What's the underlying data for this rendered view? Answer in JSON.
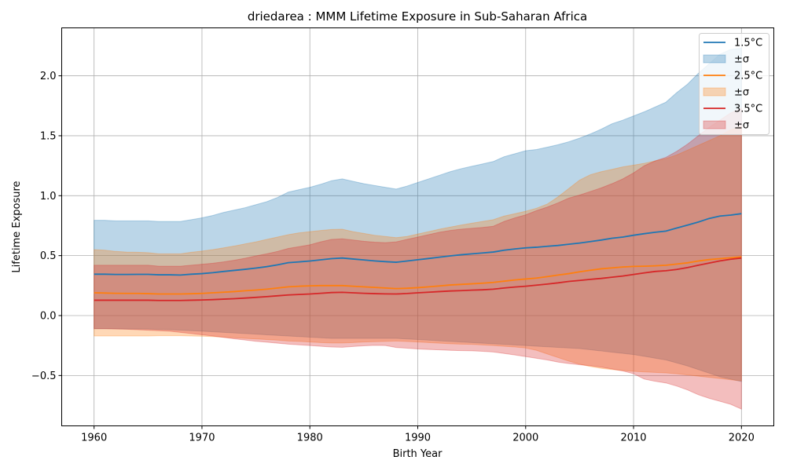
{
  "chart_data": {
    "type": "line",
    "title": "driedarea : MMM Lifetime Exposure in Sub-Saharan Africa",
    "xlabel": "Birth Year",
    "ylabel": "Lifetime Exposure",
    "xlim": [
      1957,
      2023
    ],
    "ylim": [
      -0.92,
      2.4
    ],
    "xticks": [
      1960,
      1970,
      1980,
      1990,
      2000,
      2010,
      2020
    ],
    "yticks": [
      -0.5,
      0.0,
      0.5,
      1.0,
      1.5,
      2.0
    ],
    "ytick_labels": [
      "−0.5",
      "0.0",
      "0.5",
      "1.0",
      "1.5",
      "2.0"
    ],
    "grid": true,
    "legend_position": "top-right",
    "x": [
      1960,
      1961,
      1962,
      1963,
      1964,
      1965,
      1966,
      1967,
      1968,
      1969,
      1970,
      1971,
      1972,
      1973,
      1974,
      1975,
      1976,
      1977,
      1978,
      1979,
      1980,
      1981,
      1982,
      1983,
      1984,
      1985,
      1986,
      1987,
      1988,
      1989,
      1990,
      1991,
      1992,
      1993,
      1994,
      1995,
      1996,
      1997,
      1998,
      1999,
      2000,
      2001,
      2002,
      2003,
      2004,
      2005,
      2006,
      2007,
      2008,
      2009,
      2010,
      2011,
      2012,
      2013,
      2014,
      2015,
      2016,
      2017,
      2018,
      2019,
      2020
    ],
    "series": [
      {
        "name": "1.5°C",
        "band_label": "±σ",
        "color": "#1f77b4",
        "band_color": "#aecde6",
        "mean": [
          0.345,
          0.345,
          0.343,
          0.343,
          0.344,
          0.344,
          0.34,
          0.34,
          0.338,
          0.345,
          0.35,
          0.358,
          0.368,
          0.377,
          0.386,
          0.396,
          0.408,
          0.423,
          0.441,
          0.448,
          0.455,
          0.465,
          0.475,
          0.48,
          0.472,
          0.464,
          0.456,
          0.45,
          0.445,
          0.455,
          0.466,
          0.476,
          0.487,
          0.498,
          0.507,
          0.515,
          0.522,
          0.53,
          0.545,
          0.556,
          0.565,
          0.57,
          0.578,
          0.585,
          0.595,
          0.605,
          0.617,
          0.63,
          0.645,
          0.655,
          0.67,
          0.683,
          0.695,
          0.705,
          0.73,
          0.755,
          0.78,
          0.81,
          0.83,
          0.838,
          0.85
        ],
        "upper": [
          0.795,
          0.795,
          0.79,
          0.79,
          0.79,
          0.79,
          0.785,
          0.785,
          0.785,
          0.8,
          0.815,
          0.835,
          0.86,
          0.88,
          0.9,
          0.925,
          0.95,
          0.985,
          1.03,
          1.05,
          1.07,
          1.095,
          1.125,
          1.14,
          1.12,
          1.1,
          1.085,
          1.07,
          1.055,
          1.08,
          1.11,
          1.14,
          1.17,
          1.2,
          1.225,
          1.245,
          1.265,
          1.285,
          1.325,
          1.35,
          1.375,
          1.385,
          1.405,
          1.425,
          1.45,
          1.48,
          1.515,
          1.555,
          1.6,
          1.63,
          1.665,
          1.7,
          1.74,
          1.78,
          1.86,
          1.93,
          2.02,
          2.1,
          2.18,
          2.22,
          2.23
        ],
        "lower": [
          -0.11,
          -0.11,
          -0.11,
          -0.112,
          -0.112,
          -0.112,
          -0.115,
          -0.118,
          -0.122,
          -0.126,
          -0.13,
          -0.135,
          -0.14,
          -0.145,
          -0.15,
          -0.155,
          -0.16,
          -0.165,
          -0.17,
          -0.175,
          -0.18,
          -0.185,
          -0.19,
          -0.19,
          -0.19,
          -0.19,
          -0.19,
          -0.19,
          -0.19,
          -0.195,
          -0.2,
          -0.205,
          -0.21,
          -0.215,
          -0.22,
          -0.225,
          -0.23,
          -0.235,
          -0.24,
          -0.245,
          -0.25,
          -0.255,
          -0.26,
          -0.265,
          -0.27,
          -0.275,
          -0.285,
          -0.295,
          -0.305,
          -0.315,
          -0.325,
          -0.34,
          -0.355,
          -0.37,
          -0.395,
          -0.42,
          -0.45,
          -0.48,
          -0.51,
          -0.53,
          -0.55
        ]
      },
      {
        "name": "2.5°C",
        "band_label": "±σ",
        "color": "#ff7f0e",
        "band_color": "#f8c9a2",
        "mean": [
          0.19,
          0.188,
          0.186,
          0.185,
          0.185,
          0.183,
          0.18,
          0.18,
          0.18,
          0.182,
          0.185,
          0.19,
          0.195,
          0.2,
          0.207,
          0.213,
          0.22,
          0.23,
          0.24,
          0.245,
          0.248,
          0.25,
          0.25,
          0.25,
          0.245,
          0.24,
          0.235,
          0.23,
          0.225,
          0.228,
          0.233,
          0.24,
          0.247,
          0.255,
          0.26,
          0.265,
          0.27,
          0.277,
          0.287,
          0.297,
          0.305,
          0.313,
          0.325,
          0.338,
          0.35,
          0.365,
          0.378,
          0.39,
          0.398,
          0.405,
          0.41,
          0.412,
          0.415,
          0.42,
          0.43,
          0.44,
          0.455,
          0.467,
          0.475,
          0.482,
          0.49
        ],
        "upper": [
          0.55,
          0.545,
          0.535,
          0.53,
          0.528,
          0.525,
          0.515,
          0.515,
          0.515,
          0.528,
          0.538,
          0.55,
          0.565,
          0.58,
          0.598,
          0.615,
          0.635,
          0.655,
          0.675,
          0.69,
          0.7,
          0.71,
          0.718,
          0.72,
          0.7,
          0.685,
          0.67,
          0.66,
          0.65,
          0.66,
          0.68,
          0.7,
          0.72,
          0.738,
          0.755,
          0.77,
          0.785,
          0.8,
          0.83,
          0.85,
          0.87,
          0.895,
          0.93,
          0.99,
          1.06,
          1.13,
          1.175,
          1.2,
          1.22,
          1.24,
          1.255,
          1.27,
          1.29,
          1.31,
          1.34,
          1.38,
          1.42,
          1.46,
          1.5,
          1.55,
          1.58
        ],
        "lower": [
          -0.17,
          -0.17,
          -0.17,
          -0.17,
          -0.17,
          -0.17,
          -0.168,
          -0.168,
          -0.168,
          -0.17,
          -0.172,
          -0.175,
          -0.18,
          -0.185,
          -0.19,
          -0.195,
          -0.2,
          -0.205,
          -0.212,
          -0.215,
          -0.22,
          -0.225,
          -0.228,
          -0.228,
          -0.225,
          -0.22,
          -0.218,
          -0.215,
          -0.212,
          -0.216,
          -0.22,
          -0.225,
          -0.23,
          -0.235,
          -0.238,
          -0.24,
          -0.245,
          -0.25,
          -0.256,
          -0.262,
          -0.27,
          -0.29,
          -0.32,
          -0.35,
          -0.38,
          -0.405,
          -0.425,
          -0.44,
          -0.45,
          -0.458,
          -0.465,
          -0.47,
          -0.474,
          -0.478,
          -0.485,
          -0.495,
          -0.505,
          -0.515,
          -0.525,
          -0.535,
          -0.545
        ]
      },
      {
        "name": "3.5°C",
        "band_label": "±σ",
        "color": "#d62728",
        "band_color": "#eeb0ae",
        "mean": [
          0.128,
          0.128,
          0.128,
          0.128,
          0.128,
          0.128,
          0.126,
          0.126,
          0.126,
          0.128,
          0.13,
          0.133,
          0.137,
          0.141,
          0.146,
          0.152,
          0.158,
          0.165,
          0.172,
          0.176,
          0.18,
          0.186,
          0.192,
          0.194,
          0.19,
          0.186,
          0.183,
          0.181,
          0.18,
          0.184,
          0.19,
          0.195,
          0.2,
          0.205,
          0.208,
          0.212,
          0.215,
          0.22,
          0.23,
          0.238,
          0.245,
          0.254,
          0.263,
          0.273,
          0.285,
          0.293,
          0.302,
          0.31,
          0.32,
          0.33,
          0.343,
          0.356,
          0.368,
          0.374,
          0.385,
          0.4,
          0.42,
          0.438,
          0.456,
          0.47,
          0.48
        ],
        "upper": [
          0.42,
          0.42,
          0.42,
          0.42,
          0.42,
          0.42,
          0.412,
          0.412,
          0.412,
          0.42,
          0.428,
          0.436,
          0.448,
          0.462,
          0.478,
          0.498,
          0.515,
          0.535,
          0.56,
          0.575,
          0.59,
          0.615,
          0.635,
          0.64,
          0.63,
          0.62,
          0.612,
          0.608,
          0.615,
          0.635,
          0.655,
          0.675,
          0.695,
          0.71,
          0.72,
          0.728,
          0.735,
          0.745,
          0.785,
          0.815,
          0.84,
          0.875,
          0.905,
          0.94,
          0.98,
          1.005,
          1.035,
          1.065,
          1.1,
          1.14,
          1.19,
          1.25,
          1.29,
          1.32,
          1.37,
          1.43,
          1.5,
          1.57,
          1.63,
          1.69,
          1.73
        ],
        "lower": [
          -0.11,
          -0.11,
          -0.112,
          -0.114,
          -0.118,
          -0.122,
          -0.126,
          -0.13,
          -0.14,
          -0.15,
          -0.16,
          -0.17,
          -0.182,
          -0.194,
          -0.204,
          -0.214,
          -0.222,
          -0.23,
          -0.238,
          -0.244,
          -0.25,
          -0.256,
          -0.262,
          -0.264,
          -0.258,
          -0.252,
          -0.248,
          -0.25,
          -0.266,
          -0.272,
          -0.278,
          -0.282,
          -0.286,
          -0.29,
          -0.292,
          -0.294,
          -0.298,
          -0.304,
          -0.316,
          -0.328,
          -0.342,
          -0.356,
          -0.37,
          -0.388,
          -0.4,
          -0.41,
          -0.418,
          -0.43,
          -0.445,
          -0.462,
          -0.485,
          -0.53,
          -0.548,
          -0.562,
          -0.588,
          -0.62,
          -0.66,
          -0.69,
          -0.715,
          -0.74,
          -0.78
        ]
      }
    ]
  }
}
